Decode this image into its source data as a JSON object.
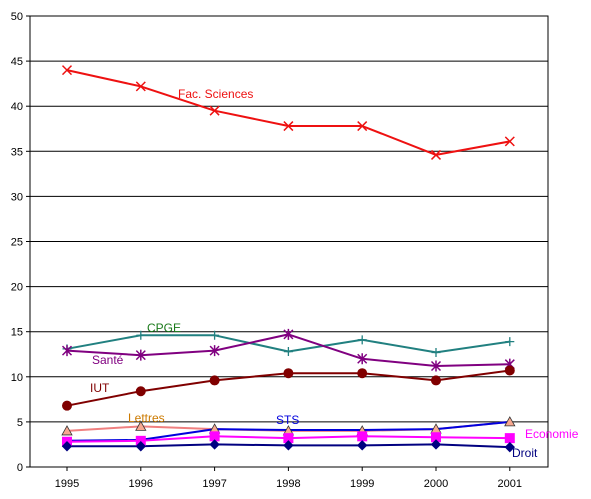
{
  "chart_data": {
    "type": "line",
    "title": "",
    "xlabel": "",
    "ylabel": "",
    "x": [
      1995,
      1996,
      1997,
      1998,
      1999,
      2000,
      2001
    ],
    "xticks": [
      "1995",
      "1996",
      "1997",
      "1998",
      "1999",
      "2000",
      "2001"
    ],
    "ylim": [
      0,
      50
    ],
    "yticks": [
      0,
      5,
      10,
      15,
      20,
      25,
      30,
      35,
      40,
      45,
      50
    ],
    "grid": "horizontal",
    "series": [
      {
        "name": "Fac. Sciences",
        "color": "#ee1111",
        "marker": "x",
        "values": [
          44,
          42.2,
          39.5,
          37.8,
          37.8,
          34.6,
          36.1
        ]
      },
      {
        "name": "CPGE",
        "color": "#218080",
        "label_color": "#1a7a1a",
        "marker": "plus",
        "values": [
          13.1,
          14.6,
          14.6,
          12.8,
          14.1,
          12.7,
          13.9
        ]
      },
      {
        "name": "Santé",
        "color": "#800080",
        "marker": "star",
        "values": [
          12.9,
          12.4,
          12.9,
          14.7,
          12.0,
          11.2,
          11.4
        ]
      },
      {
        "name": "IUT",
        "color": "#800000",
        "marker": "circle",
        "values": [
          6.8,
          8.4,
          9.6,
          10.4,
          10.4,
          9.6,
          10.7
        ]
      },
      {
        "name": "Lettres",
        "color": "#f08080",
        "label_color": "#cc7a00",
        "marker": "triangle",
        "values": [
          4.0,
          4.5,
          4.2,
          4.0,
          4.0,
          4.2,
          5.0
        ]
      },
      {
        "name": "STS",
        "color": "#0000dd",
        "marker": "none",
        "values": [
          2.9,
          3.0,
          4.2,
          4.1,
          4.1,
          4.2,
          5.0
        ]
      },
      {
        "name": "Economie",
        "color": "#ff00ff",
        "marker": "square",
        "values": [
          2.8,
          2.9,
          3.4,
          3.2,
          3.4,
          3.3,
          3.2
        ]
      },
      {
        "name": "Droit",
        "color": "#000080",
        "marker": "diamond",
        "values": [
          2.3,
          2.3,
          2.5,
          2.4,
          2.4,
          2.5,
          2.2
        ]
      }
    ],
    "labels": [
      {
        "series": "Fac. Sciences",
        "text": "Fac. Sciences"
      },
      {
        "series": "CPGE",
        "text": "CPGE"
      },
      {
        "series": "Santé",
        "text": "Santé"
      },
      {
        "series": "IUT",
        "text": "IUT"
      },
      {
        "series": "Lettres",
        "text": "Lettres"
      },
      {
        "series": "STS",
        "text": "STS"
      },
      {
        "series": "Economie",
        "text": "Economie"
      },
      {
        "series": "Droit",
        "text": "Droit"
      }
    ]
  }
}
